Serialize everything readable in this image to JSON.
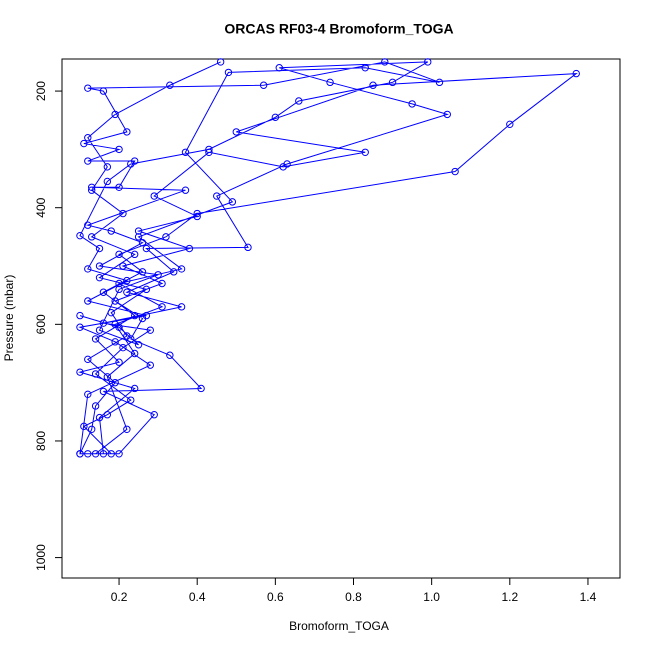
{
  "chart_data": {
    "type": "line",
    "title": "ORCAS RF03-4 Bromoform_TOGA",
    "x_label": "Bromoform_TOGA",
    "y_label": "Pressure (mbar)",
    "color": "#0000ff",
    "markers": true,
    "y_reversed": true,
    "xlim": [
      0.054,
      1.482
    ],
    "ylim": [
      1035,
      145
    ],
    "xticks": [
      0.2,
      0.4,
      0.6,
      0.8,
      {
        "value": 1,
        "label": "1.0"
      },
      1.2,
      1.4
    ],
    "yticks": [
      200,
      400,
      600,
      800,
      1000
    ],
    "series": [
      {
        "name": "Bromoform_TOGA",
        "x": [
          0.46,
          0.33,
          0.19,
          0.12,
          0.17,
          0.13,
          0.21,
          0.13,
          0.24,
          0.15,
          0.27,
          0.18,
          0.22,
          0.12,
          0.19,
          0.14,
          0.13,
          0.1,
          0.12,
          0.2,
          0.29,
          0.16,
          0.41,
          0.33,
          0.23,
          0.26,
          0.19,
          0.31,
          0.21,
          0.38,
          0.25,
          0.4,
          0.29,
          0.43,
          0.62,
          0.83,
          0.5,
          0.85,
          1.37,
          1.2,
          1.06,
          0.4,
          0.32,
          0.2,
          0.26,
          0.16,
          0.24,
          0.14,
          0.2,
          0.1,
          0.24,
          0.15,
          0.16,
          0.18,
          0.11,
          0.17,
          0.23,
          0.14,
          0.21,
          0.28,
          0.16,
          0.36,
          0.22,
          0.34,
          0.27,
          0.53,
          0.45,
          0.63,
          1.04,
          0.95,
          0.74,
          0.61,
          0.99,
          0.9,
          0.66,
          0.6,
          0.43,
          0.23,
          0.17,
          0.1,
          0.15,
          0.12,
          0.22,
          0.12,
          0.27,
          0.1,
          0.19,
          0.28,
          0.12,
          0.1,
          0.14,
          0.22,
          0.17,
          0.24,
          0.19,
          0.31,
          0.2,
          0.36,
          0.25,
          0.49,
          0.37,
          0.48,
          0.83,
          1.02,
          0.88,
          0.57,
          0.12,
          0.16,
          0.22,
          0.11,
          0.2,
          0.12,
          0.24,
          0.2,
          0.13,
          0.37,
          0.12,
          0.18,
          0.26,
          0.15,
          0.3,
          0.2,
          0.15,
          0.25,
          0.2,
          0.1
        ],
        "values": [
          150,
          190,
          240,
          280,
          330,
          370,
          410,
          450,
          480,
          520,
          540,
          580,
          620,
          660,
          700,
          740,
          780,
          822,
          822,
          822,
          755,
          715,
          710,
          653,
          625,
          590,
          560,
          530,
          500,
          470,
          440,
          415,
          380,
          305,
          330,
          305,
          270,
          190,
          170,
          257,
          338,
          410,
          450,
          480,
          510,
          545,
          585,
          625,
          665,
          682,
          710,
          760,
          822,
          822,
          775,
          755,
          730,
          685,
          640,
          610,
          598,
          570,
          545,
          510,
          470,
          468,
          380,
          325,
          240,
          222,
          185,
          160,
          150,
          185,
          217,
          245,
          300,
          325,
          355,
          448,
          470,
          505,
          525,
          560,
          585,
          605,
          630,
          670,
          720,
          822,
          822,
          780,
          690,
          650,
          600,
          570,
          530,
          505,
          450,
          390,
          305,
          168,
          160,
          185,
          150,
          190,
          195,
          200,
          270,
          290,
          300,
          320,
          320,
          365,
          365,
          370,
          430,
          440,
          460,
          500,
          515,
          540,
          610,
          635,
          605,
          585
        ]
      }
    ]
  }
}
